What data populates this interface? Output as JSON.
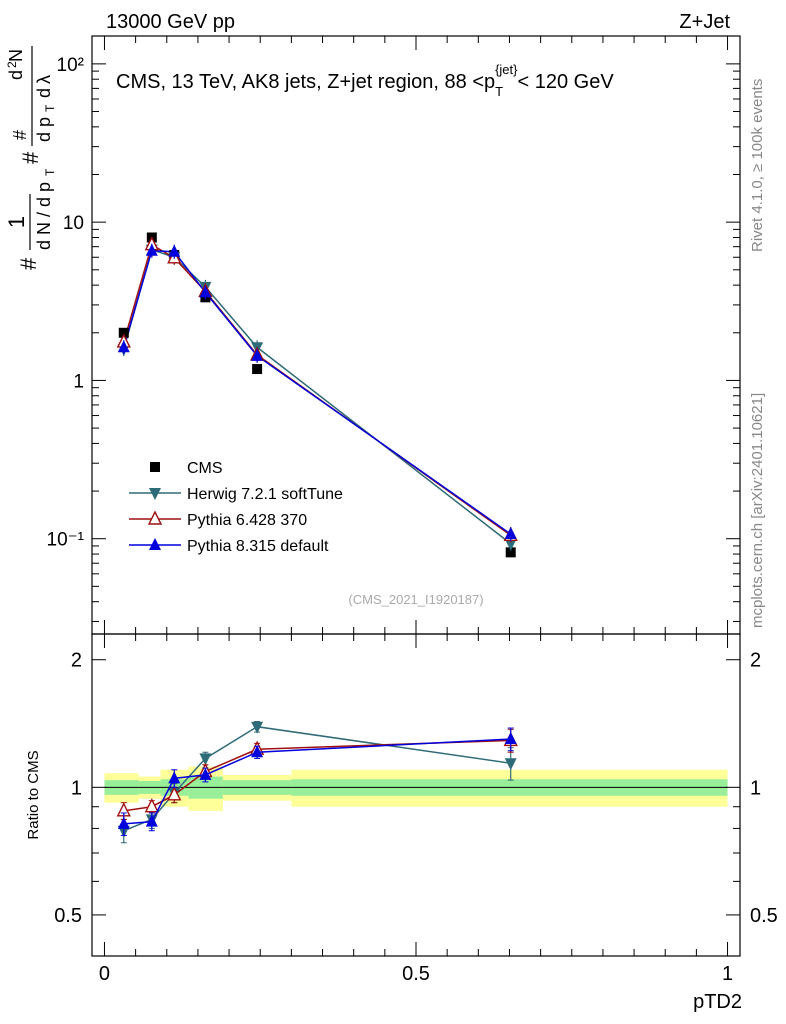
{
  "header": {
    "left": "13000 GeV pp",
    "right": "Z+Jet"
  },
  "side": {
    "rivet": "Rivet 4.1.0, ≥ 100k events",
    "source": "mcplots.cern.ch [arXiv:2401.10621]"
  },
  "chart_data": [
    {
      "type": "line",
      "panel": "main",
      "title": "CMS, 13 TeV, AK8 jets, Z+jet region, 88 <p_T^{jet}< 120 GeV",
      "ylabel": "1/dN/dp_T # d²N/dp_T dλ",
      "yscale": "log",
      "ylim": [
        0.025,
        150
      ],
      "xlim": [
        -0.02,
        1.02
      ],
      "watermark": "(CMS_2021_I1920187)",
      "legend_position": "middle-left",
      "y_tick_labels": [
        "10⁻¹",
        "1",
        "10",
        "10²"
      ],
      "series": [
        {
          "name": "CMS",
          "color": "#000000",
          "marker": "square",
          "x": [
            0.031,
            0.076,
            0.112,
            0.162,
            0.245,
            0.652
          ],
          "y": [
            2.0,
            8.0,
            6.2,
            3.35,
            1.18,
            0.082
          ]
        },
        {
          "name": "Herwig 7.2.1 softTune",
          "color": "#2e6b78",
          "marker": "triangle-down",
          "x": [
            0.031,
            0.076,
            0.112,
            0.162,
            0.245,
            0.652
          ],
          "y": [
            1.58,
            6.7,
            6.0,
            3.9,
            1.62,
            0.093
          ]
        },
        {
          "name": "Pythia 6.428 370",
          "color": "#a01010",
          "marker": "triangle-up-open",
          "x": [
            0.031,
            0.076,
            0.112,
            0.162,
            0.245,
            0.652
          ],
          "y": [
            1.75,
            7.2,
            5.95,
            3.65,
            1.45,
            0.105
          ]
        },
        {
          "name": "Pythia 8.315 default",
          "color": "#0000dd",
          "marker": "triangle-up",
          "x": [
            0.031,
            0.076,
            0.112,
            0.162,
            0.245,
            0.652
          ],
          "y": [
            1.62,
            6.6,
            6.5,
            3.6,
            1.43,
            0.107
          ]
        }
      ]
    },
    {
      "type": "line",
      "panel": "ratio",
      "ylabel": "Ratio to CMS",
      "xlabel": "pTD2",
      "ylim": [
        0.4,
        2.3
      ],
      "xlim": [
        -0.02,
        1.02
      ],
      "y_ticks": [
        "0.5",
        "1",
        "2"
      ],
      "x_ticks": [
        "0",
        "0.5",
        "1"
      ],
      "bands": {
        "edges": [
          0.0,
          0.055,
          0.09,
          0.135,
          0.19,
          0.3,
          1.0
        ],
        "inner": [
          0.04,
          0.035,
          0.045,
          0.06,
          0.04,
          0.045
        ],
        "outer": [
          0.08,
          0.06,
          0.1,
          0.12,
          0.07,
          0.1
        ],
        "inner_color": "#99ee99",
        "outer_color": "#ffff99"
      },
      "series": [
        {
          "name": "Herwig 7.2.1 softTune",
          "color": "#2e6b78",
          "x": [
            0.031,
            0.076,
            0.112,
            0.162,
            0.245,
            0.652
          ],
          "y": [
            0.79,
            0.84,
            0.97,
            1.17,
            1.39,
            1.14
          ],
          "err": [
            0.05,
            0.04,
            0.05,
            0.04,
            0.04,
            0.1
          ]
        },
        {
          "name": "Pythia 6.428 370",
          "color": "#a01010",
          "x": [
            0.031,
            0.076,
            0.112,
            0.162,
            0.245,
            0.652
          ],
          "y": [
            0.88,
            0.9,
            0.96,
            1.09,
            1.23,
            1.29
          ],
          "err": [
            0.04,
            0.03,
            0.04,
            0.04,
            0.04,
            0.08
          ]
        },
        {
          "name": "Pythia 8.315 default",
          "color": "#0000dd",
          "x": [
            0.031,
            0.076,
            0.112,
            0.162,
            0.245,
            0.652
          ],
          "y": [
            0.82,
            0.83,
            1.05,
            1.07,
            1.21,
            1.3
          ],
          "err": [
            0.05,
            0.04,
            0.05,
            0.04,
            0.04,
            0.08
          ]
        }
      ]
    }
  ]
}
